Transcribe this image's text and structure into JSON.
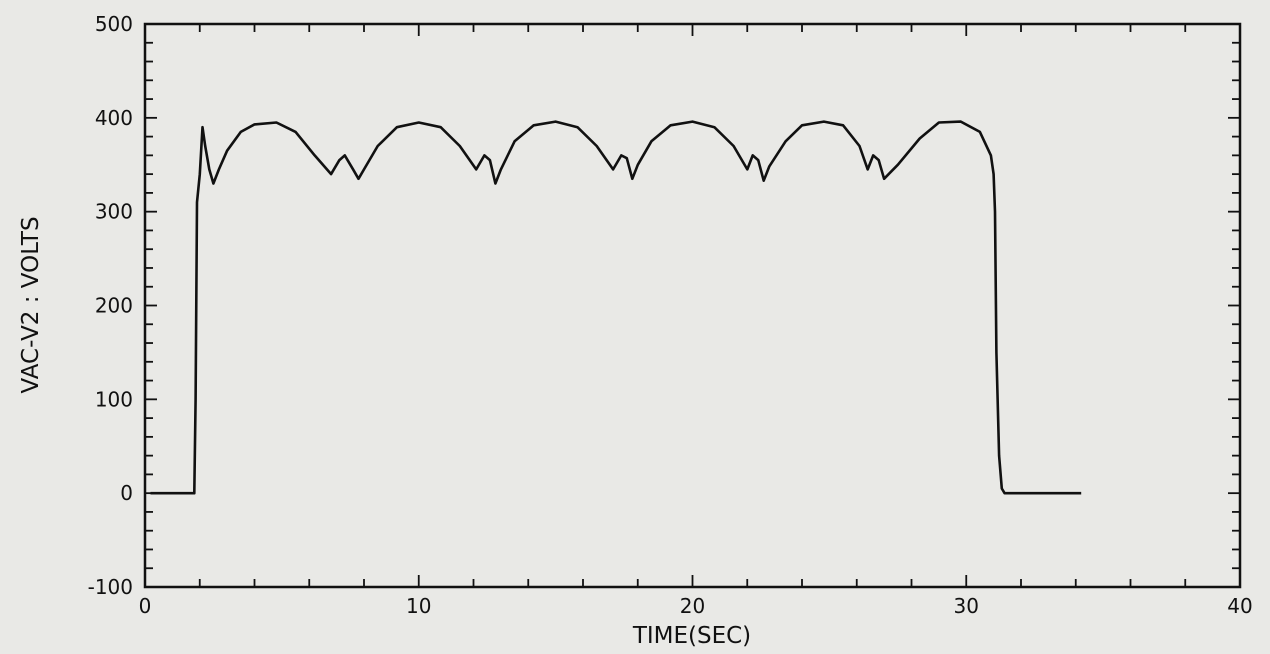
{
  "chart_data": {
    "type": "line",
    "xlabel": "TIME(SEC)",
    "ylabel": "VAC-V2 : VOLTS",
    "xlim": [
      0,
      40
    ],
    "ylim": [
      -100,
      500
    ],
    "x_ticks": [
      0,
      10,
      20,
      30,
      40
    ],
    "y_ticks": [
      -100,
      0,
      100,
      200,
      300,
      400,
      500
    ],
    "x_tick_labels": [
      "0",
      "10",
      "20",
      "30",
      "40"
    ],
    "y_tick_labels": [
      "-100",
      "0",
      "100",
      "200",
      "300",
      "400",
      "500"
    ],
    "grid": false,
    "colors": {
      "background": "#e9e9e6",
      "line": "#111111",
      "axis": "#111111"
    },
    "series": [
      {
        "x": [
          0.2,
          1.2,
          1.8,
          1.85,
          1.9,
          2.0,
          2.1,
          2.2,
          2.35,
          2.5,
          2.7,
          3.0,
          3.5,
          4.0,
          4.8,
          5.5,
          6.2,
          6.8,
          7.1,
          7.3,
          7.6,
          7.8,
          8.0,
          8.5,
          9.2,
          10.0,
          10.8,
          11.5,
          12.1,
          12.4,
          12.6,
          12.8,
          13.0,
          13.5,
          14.2,
          15.0,
          15.8,
          16.5,
          17.1,
          17.4,
          17.6,
          17.8,
          18.0,
          18.5,
          19.2,
          20.0,
          20.8,
          21.5,
          22.0,
          22.2,
          22.4,
          22.6,
          22.8,
          23.4,
          24.0,
          24.8,
          25.5,
          26.1,
          26.4,
          26.6,
          26.8,
          27.0,
          27.5,
          28.3,
          29.0,
          29.8,
          30.5,
          30.9,
          31.0,
          31.05,
          31.1,
          31.2,
          31.3,
          31.4,
          32.0,
          33.0,
          34.2
        ],
        "y": [
          0,
          0,
          0,
          100,
          310,
          340,
          390,
          370,
          345,
          330,
          345,
          365,
          385,
          393,
          395,
          385,
          360,
          340,
          355,
          360,
          345,
          335,
          345,
          370,
          390,
          395,
          390,
          370,
          345,
          360,
          355,
          330,
          345,
          375,
          392,
          396,
          390,
          370,
          345,
          360,
          357,
          335,
          350,
          375,
          392,
          396,
          390,
          370,
          345,
          360,
          355,
          333,
          348,
          375,
          392,
          396,
          392,
          370,
          345,
          360,
          355,
          335,
          350,
          378,
          395,
          396,
          385,
          360,
          340,
          300,
          150,
          40,
          5,
          0,
          0,
          0,
          0
        ]
      }
    ]
  }
}
